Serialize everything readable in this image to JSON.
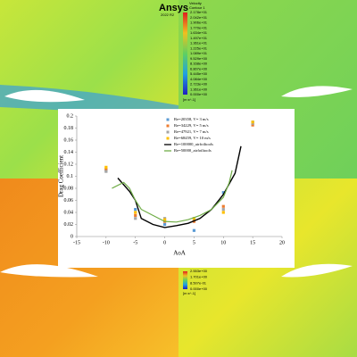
{
  "background": {
    "brand": "Ansys",
    "version": "2022 R2",
    "contour_title": "Velocity",
    "contour_name": "Contour 1",
    "colorbar_top": [
      "2.178e+01",
      "2.042e+01",
      "1.906e+01",
      "1.770e+01",
      "1.634e+01",
      "1.497e+01",
      "1.361e+01",
      "1.225e+01",
      "1.089e+01",
      "9.529e+00",
      "8.168e+00",
      "6.807e+00",
      "5.445e+00",
      "4.084e+00",
      "2.723e+00",
      "1.361e+00",
      "0.000e+00"
    ],
    "unit_top": "[m s^-1]",
    "colorbar_bottom": [
      "2.553e+00",
      "1.701e+00",
      "8.507e-01",
      "0.000e+00"
    ],
    "unit_bottom": "[m s^-1]"
  },
  "chart_data": {
    "type": "scatter",
    "xlabel": "AoA",
    "ylabel": "Drag Coefficient",
    "xlim": [
      -15,
      20
    ],
    "xticks": [
      -15,
      -10,
      -5,
      0,
      5,
      10,
      15,
      20
    ],
    "ylim": [
      0,
      0.2
    ],
    "yticks": [
      0,
      0.02,
      0.04,
      0.06,
      0.08,
      0.1,
      0.12,
      0.14,
      0.16,
      0.18,
      0.2
    ],
    "legend": "upper center",
    "series": [
      {
        "name": "Re=20358, V= 3 m/s",
        "mode": "markers",
        "color": "#5b9bd5",
        "x": [
          -10,
          -5,
          0,
          5,
          10,
          15
        ],
        "values": [
          0.11,
          0.045,
          0.02,
          0.01,
          0.073,
          0.19
        ]
      },
      {
        "name": "Re=34229, V= 5 m/s",
        "mode": "markers",
        "color": "#ed7d31",
        "x": [
          -10,
          -5,
          0,
          5,
          10,
          15
        ],
        "values": [
          0.112,
          0.035,
          0.025,
          0.025,
          0.05,
          0.185
        ]
      },
      {
        "name": "Re=47921, V= 7 m/s",
        "mode": "markers",
        "color": "#a5a5a5",
        "x": [
          -10,
          -5,
          0,
          5,
          10,
          15
        ],
        "values": [
          0.108,
          0.03,
          0.03,
          0.03,
          0.045,
          0.188
        ]
      },
      {
        "name": "Re=68459, V= 10 m/s",
        "mode": "markers",
        "color": "#ffc000",
        "x": [
          -10,
          -5,
          0,
          5,
          10,
          15
        ],
        "values": [
          0.115,
          0.04,
          0.028,
          0.03,
          0.04,
          0.19
        ]
      },
      {
        "name": "Re=100000_airfoiltools",
        "mode": "lines",
        "color": "#000000",
        "x": [
          -8,
          -6,
          -5,
          -4,
          -2,
          0,
          2,
          4,
          6,
          8,
          10,
          12,
          13
        ],
        "values": [
          0.097,
          0.075,
          0.06,
          0.03,
          0.02,
          0.015,
          0.018,
          0.022,
          0.03,
          0.045,
          0.07,
          0.105,
          0.15
        ]
      },
      {
        "name": "Re=50000_airfoiltools",
        "mode": "lines",
        "color": "#70ad47",
        "x": [
          -9,
          -7,
          -6,
          -5,
          -4,
          -3,
          -2,
          0,
          2,
          4,
          6,
          8,
          10,
          11,
          11.5
        ],
        "values": [
          0.08,
          0.09,
          0.08,
          0.06,
          0.045,
          0.04,
          0.035,
          0.025,
          0.024,
          0.028,
          0.035,
          0.045,
          0.065,
          0.09,
          0.11
        ]
      }
    ]
  }
}
